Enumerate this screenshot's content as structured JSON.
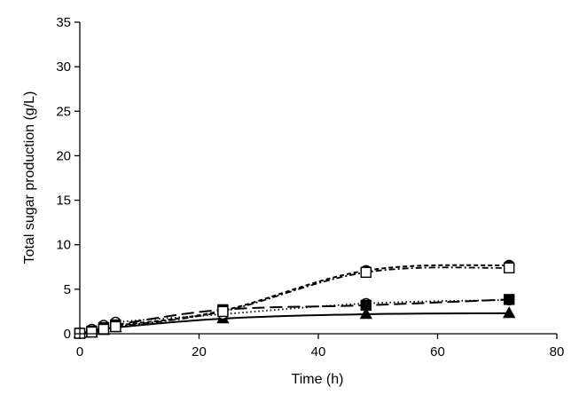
{
  "chart_data": {
    "type": "line",
    "title": "",
    "xlabel": "Time (h)",
    "ylabel": "Total sugar production (g/L)",
    "xlim": [
      0,
      80
    ],
    "ylim": [
      0,
      35
    ],
    "x_ticks": [
      0,
      20,
      40,
      60,
      80
    ],
    "y_ticks": [
      0,
      5,
      10,
      15,
      20,
      25,
      30,
      35
    ],
    "grid": false,
    "legend": "none",
    "series": [
      {
        "name": "series-solid-triangle",
        "marker": "triangle",
        "marker_fill": "#000000",
        "line": "solid",
        "x": [
          0,
          2,
          4,
          6,
          24,
          48,
          72
        ],
        "y": [
          0.05,
          0.1,
          0.4,
          0.7,
          1.7,
          2.2,
          2.3
        ]
      },
      {
        "name": "series-dotted-open-circle",
        "marker": "circle",
        "marker_fill": "#ffffff",
        "line": "dotted",
        "x": [
          0,
          2,
          4,
          6,
          24,
          48,
          72
        ],
        "y": [
          0.05,
          0.5,
          0.95,
          1.3,
          2.2,
          3.4,
          3.8
        ]
      },
      {
        "name": "series-longdash-filled-square",
        "marker": "square",
        "marker_fill": "#000000",
        "line": "longdash",
        "x": [
          0,
          2,
          4,
          6,
          24,
          48,
          72
        ],
        "y": [
          0.05,
          0.3,
          0.7,
          1.0,
          2.7,
          3.2,
          3.85
        ]
      },
      {
        "name": "series-shortdash-filled-circle",
        "marker": "circle",
        "marker_fill": "#000000",
        "line": "shortdash",
        "x": [
          0,
          2,
          4,
          6,
          24,
          48,
          72
        ],
        "y": [
          0.05,
          0.3,
          0.6,
          0.9,
          2.6,
          7.1,
          7.7
        ]
      },
      {
        "name": "series-dashdot-open-square",
        "marker": "square",
        "marker_fill": "#ffffff",
        "line": "dashdot",
        "x": [
          0,
          2,
          4,
          6,
          24,
          48,
          72
        ],
        "y": [
          0.05,
          0.2,
          0.5,
          0.8,
          2.5,
          6.9,
          7.4
        ]
      }
    ]
  }
}
